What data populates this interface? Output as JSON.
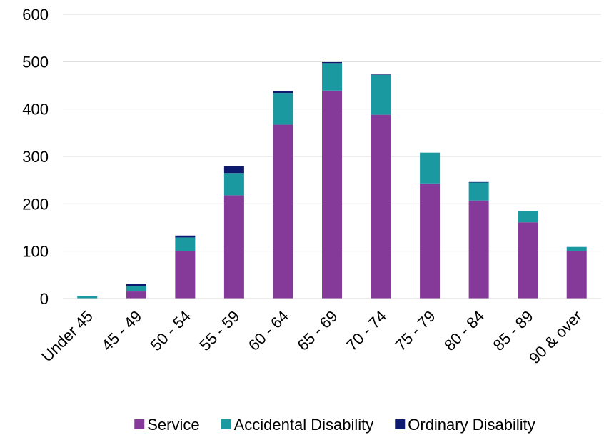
{
  "chart_data": {
    "type": "bar",
    "stacked": true,
    "categories": [
      "Under 45",
      "45 - 49",
      "50 - 54",
      "55 - 59",
      "60 - 64",
      "65 - 69",
      "70 - 74",
      "75 - 79",
      "80 - 84",
      "85 - 89",
      "90 & over"
    ],
    "series": [
      {
        "name": "Service",
        "color": "#853a99",
        "values": [
          0,
          15,
          100,
          218,
          367,
          439,
          388,
          243,
          207,
          161,
          101
        ]
      },
      {
        "name": "Accidental Disability",
        "color": "#1a9aa0",
        "values": [
          6,
          12,
          29,
          47,
          67,
          58,
          84,
          65,
          38,
          24,
          8
        ]
      },
      {
        "name": "Ordinary Disability",
        "color": "#0e1a6e",
        "values": [
          0,
          4,
          4,
          15,
          4,
          2,
          1,
          0,
          1,
          0,
          0
        ]
      }
    ],
    "title": "",
    "xlabel": "",
    "ylabel": "",
    "ylim": [
      0,
      600
    ],
    "yticks": [
      0,
      100,
      200,
      300,
      400,
      500,
      600
    ],
    "grid": true,
    "legend_position": "bottom"
  }
}
